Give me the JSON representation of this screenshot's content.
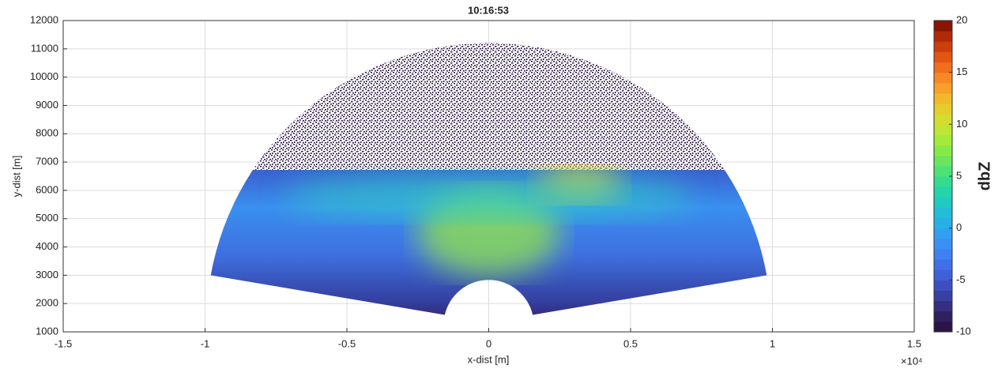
{
  "chart_data": {
    "type": "radar-sector",
    "title": "10:16:53",
    "x_label": "x-dist [m]",
    "y_label": "y-dist [m]",
    "x_exponent_label": "×10⁴",
    "xlim": [
      -15000,
      15000
    ],
    "xticks": [
      {
        "value": -15000,
        "label": "-1.5"
      },
      {
        "value": -10000,
        "label": "-1"
      },
      {
        "value": -5000,
        "label": "-0.5"
      },
      {
        "value": 0,
        "label": "0"
      },
      {
        "value": 5000,
        "label": "0.5"
      },
      {
        "value": 10000,
        "label": "1"
      },
      {
        "value": 15000,
        "label": "1.5"
      }
    ],
    "ylim": [
      1000,
      12000
    ],
    "yticks": [
      1000,
      2000,
      3000,
      4000,
      5000,
      6000,
      7000,
      8000,
      9000,
      10000,
      11000,
      12000
    ],
    "grid": true,
    "colorbar": {
      "label": "dbZ",
      "clim": [
        -10,
        20
      ],
      "ticks": [
        -10,
        -5,
        0,
        5,
        10,
        15,
        20
      ],
      "colors": [
        "#2a1446",
        "#30205e",
        "#342f80",
        "#3a3fa2",
        "#3d4fc0",
        "#3f60d8",
        "#4070e8",
        "#3f80f2",
        "#3a90f5",
        "#30a0f0",
        "#28b0e6",
        "#22bed6",
        "#1fcac2",
        "#24d4aa",
        "#34dc90",
        "#4ee276",
        "#6ae65e",
        "#88ea48",
        "#a4ea3a",
        "#bee632",
        "#d4dc2e",
        "#e6cc2c",
        "#f2b82c",
        "#f8a02a",
        "#f88824",
        "#f06e1c",
        "#e25614",
        "#cc3e0c",
        "#b02a08",
        "#8a1406"
      ]
    }
  }
}
